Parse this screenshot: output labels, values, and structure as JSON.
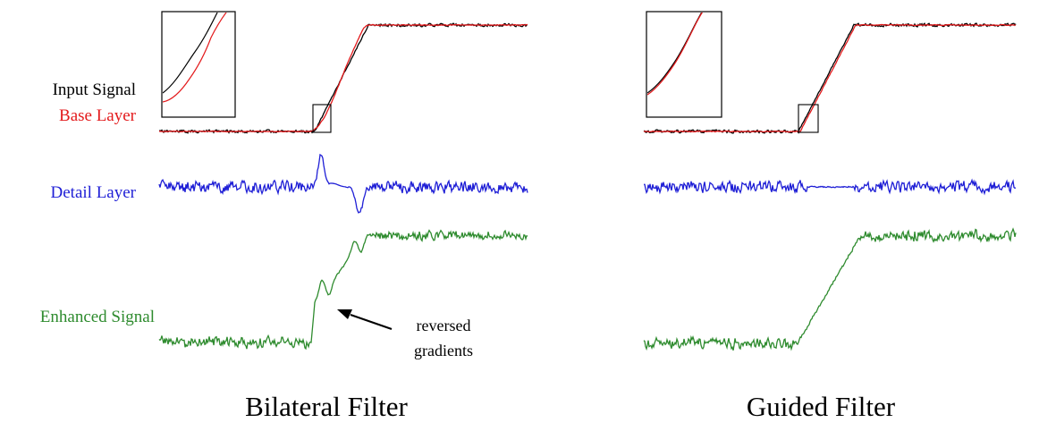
{
  "labels": {
    "input_signal": "Input Signal",
    "base_layer": "Base Layer",
    "detail_layer": "Detail Layer",
    "enhanced_signal": "Enhanced Signal"
  },
  "panels": [
    {
      "caption": "Bilateral Filter"
    },
    {
      "caption": "Guided Filter"
    }
  ],
  "annotation": {
    "line1": "reversed",
    "line2": "gradients"
  },
  "colors": {
    "input": "#000000",
    "base": "#e31a1c",
    "detail": "#1f1fd6",
    "enhanced": "#2e8b2e"
  }
}
